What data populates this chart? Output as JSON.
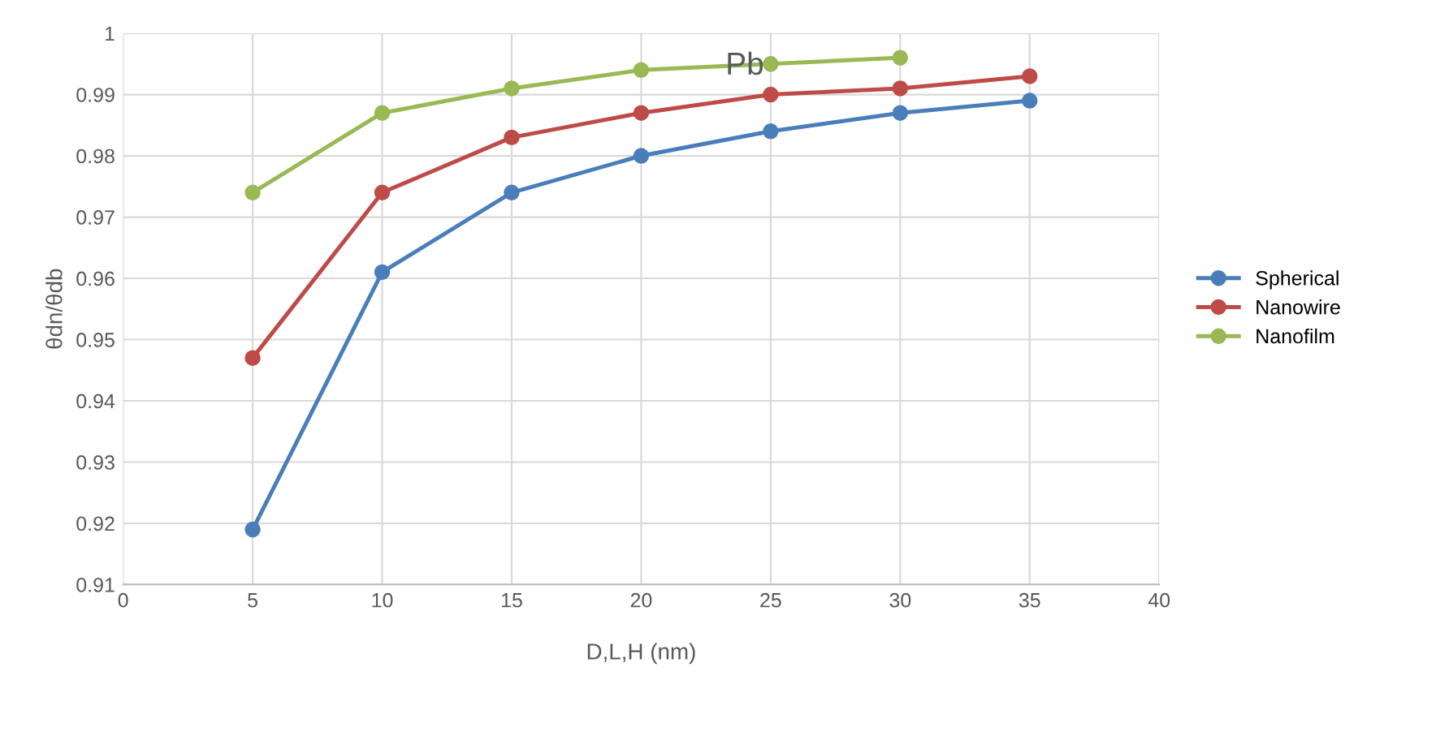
{
  "chart_data": {
    "type": "line",
    "title": "Pb",
    "xlabel": "D,L,H (nm)",
    "ylabel": "θdn/θdb",
    "x": [
      5,
      10,
      15,
      20,
      25,
      30,
      35
    ],
    "series": [
      {
        "name": "Spherical",
        "color": "#4a7ebb",
        "values": [
          0.919,
          0.961,
          0.974,
          0.98,
          0.984,
          0.987,
          0.989
        ]
      },
      {
        "name": "Nanowire",
        "color": "#be4b48",
        "values": [
          0.947,
          0.974,
          0.983,
          0.987,
          0.99,
          0.991,
          0.993
        ]
      },
      {
        "name": "Nanofilm",
        "color": "#98b954",
        "values": [
          0.974,
          0.987,
          0.991,
          0.994,
          0.995,
          0.996,
          null
        ]
      }
    ],
    "xlim": [
      0,
      40
    ],
    "xticks": [
      0,
      5,
      10,
      15,
      20,
      25,
      30,
      35,
      40
    ],
    "ylim": [
      0.91,
      1
    ],
    "yticks": [
      0.91,
      0.92,
      0.93,
      0.94,
      0.95,
      0.96,
      0.97,
      0.98,
      0.99,
      1
    ],
    "grid": true,
    "legend": "right",
    "marker": "circle",
    "line_style": "solid"
  }
}
